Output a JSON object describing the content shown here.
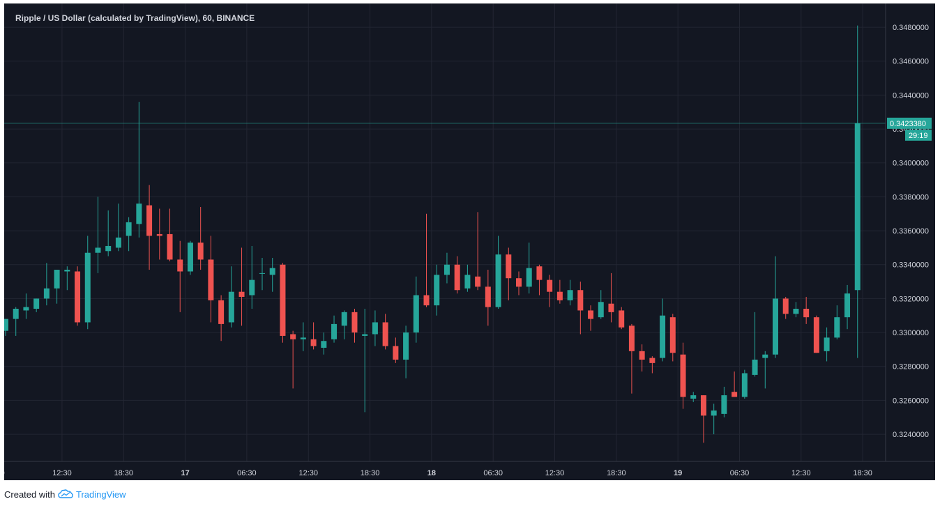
{
  "chart_title": "Ripple / US Dollar (calculated by TradingView), 60, BINANCE",
  "footer": {
    "created_with": "Created with",
    "brand": "TradingView"
  },
  "colors": {
    "background": "#131722",
    "up": "#26a69a",
    "down": "#ef5350",
    "grid": "#232633",
    "text": "#d1d4dc"
  },
  "chart_data": {
    "type": "candlestick",
    "title": "Ripple / US Dollar (calculated by TradingView), 60, BINANCE",
    "ylim": [
      0.3224,
      0.3494
    ],
    "y_ticks": [
      "0.3480000",
      "0.3460000",
      "0.3440000",
      "0.3420000",
      "0.3400000",
      "0.3380000",
      "0.3360000",
      "0.3340000",
      "0.3320000",
      "0.3300000",
      "0.3280000",
      "0.3260000",
      "0.3240000"
    ],
    "x_ticks": [
      {
        "label": "30",
        "index": -0.5,
        "bold": false
      },
      {
        "label": "12:30",
        "index": 5.5,
        "bold": false
      },
      {
        "label": "18:30",
        "index": 11.5,
        "bold": false
      },
      {
        "label": "17",
        "index": 17.5,
        "bold": true
      },
      {
        "label": "06:30",
        "index": 23.5,
        "bold": false
      },
      {
        "label": "12:30",
        "index": 29.5,
        "bold": false
      },
      {
        "label": "18:30",
        "index": 35.5,
        "bold": false
      },
      {
        "label": "18",
        "index": 41.5,
        "bold": true
      },
      {
        "label": "06:30",
        "index": 47.5,
        "bold": false
      },
      {
        "label": "12:30",
        "index": 53.5,
        "bold": false
      },
      {
        "label": "18:30",
        "index": 59.5,
        "bold": false
      },
      {
        "label": "19",
        "index": 65.5,
        "bold": true
      },
      {
        "label": "06:30",
        "index": 71.5,
        "bold": false
      },
      {
        "label": "12:30",
        "index": 77.5,
        "bold": false
      },
      {
        "label": "18:30",
        "index": 83.5,
        "bold": false
      }
    ],
    "last_price": "0.3423380",
    "countdown": "29:19",
    "last_price_value": 0.342338,
    "candles": [
      {
        "o": 0.3301,
        "h": 0.3307,
        "l": 0.3298,
        "c": 0.3308
      },
      {
        "o": 0.3308,
        "h": 0.3315,
        "l": 0.3298,
        "c": 0.3314
      },
      {
        "o": 0.3313,
        "h": 0.3323,
        "l": 0.3308,
        "c": 0.3315
      },
      {
        "o": 0.3314,
        "h": 0.332,
        "l": 0.3312,
        "c": 0.332
      },
      {
        "o": 0.332,
        "h": 0.3341,
        "l": 0.3316,
        "c": 0.3326
      },
      {
        "o": 0.3326,
        "h": 0.3335,
        "l": 0.3317,
        "c": 0.3337
      },
      {
        "o": 0.3336,
        "h": 0.3339,
        "l": 0.3325,
        "c": 0.3337
      },
      {
        "o": 0.3336,
        "h": 0.3339,
        "l": 0.3304,
        "c": 0.3306
      },
      {
        "o": 0.3306,
        "h": 0.3357,
        "l": 0.3302,
        "c": 0.3347
      },
      {
        "o": 0.3347,
        "h": 0.338,
        "l": 0.3335,
        "c": 0.335
      },
      {
        "o": 0.3348,
        "h": 0.3372,
        "l": 0.3345,
        "c": 0.3351
      },
      {
        "o": 0.335,
        "h": 0.3376,
        "l": 0.3348,
        "c": 0.3356
      },
      {
        "o": 0.3357,
        "h": 0.3368,
        "l": 0.3348,
        "c": 0.3365
      },
      {
        "o": 0.3364,
        "h": 0.3436,
        "l": 0.3356,
        "c": 0.3376
      },
      {
        "o": 0.3375,
        "h": 0.3387,
        "l": 0.3337,
        "c": 0.3357
      },
      {
        "o": 0.3358,
        "h": 0.3373,
        "l": 0.3343,
        "c": 0.3357
      },
      {
        "o": 0.3358,
        "h": 0.3373,
        "l": 0.3342,
        "c": 0.3343
      },
      {
        "o": 0.3343,
        "h": 0.3354,
        "l": 0.3312,
        "c": 0.3336
      },
      {
        "o": 0.3336,
        "h": 0.3354,
        "l": 0.3334,
        "c": 0.3353
      },
      {
        "o": 0.3353,
        "h": 0.3374,
        "l": 0.3337,
        "c": 0.3343
      },
      {
        "o": 0.3343,
        "h": 0.3357,
        "l": 0.3306,
        "c": 0.3319
      },
      {
        "o": 0.3319,
        "h": 0.3322,
        "l": 0.3295,
        "c": 0.3305
      },
      {
        "o": 0.3306,
        "h": 0.3339,
        "l": 0.3303,
        "c": 0.3324
      },
      {
        "o": 0.3324,
        "h": 0.335,
        "l": 0.3304,
        "c": 0.3321
      },
      {
        "o": 0.3322,
        "h": 0.3351,
        "l": 0.3314,
        "c": 0.3331
      },
      {
        "o": 0.3335,
        "h": 0.3344,
        "l": 0.3325,
        "c": 0.3335
      },
      {
        "o": 0.3334,
        "h": 0.3344,
        "l": 0.3324,
        "c": 0.3338
      },
      {
        "o": 0.334,
        "h": 0.3341,
        "l": 0.3294,
        "c": 0.3298
      },
      {
        "o": 0.3299,
        "h": 0.3301,
        "l": 0.3267,
        "c": 0.3296
      },
      {
        "o": 0.3296,
        "h": 0.3306,
        "l": 0.3289,
        "c": 0.3297
      },
      {
        "o": 0.3296,
        "h": 0.3306,
        "l": 0.329,
        "c": 0.3292
      },
      {
        "o": 0.3291,
        "h": 0.33,
        "l": 0.3287,
        "c": 0.3295
      },
      {
        "o": 0.3296,
        "h": 0.331,
        "l": 0.3294,
        "c": 0.3305
      },
      {
        "o": 0.3304,
        "h": 0.3313,
        "l": 0.3296,
        "c": 0.3312
      },
      {
        "o": 0.3312,
        "h": 0.3314,
        "l": 0.3294,
        "c": 0.33
      },
      {
        "o": 0.3298,
        "h": 0.3314,
        "l": 0.3253,
        "c": 0.3299
      },
      {
        "o": 0.3299,
        "h": 0.3313,
        "l": 0.3292,
        "c": 0.3306
      },
      {
        "o": 0.3306,
        "h": 0.3311,
        "l": 0.329,
        "c": 0.3292
      },
      {
        "o": 0.3292,
        "h": 0.3297,
        "l": 0.3282,
        "c": 0.3284
      },
      {
        "o": 0.3284,
        "h": 0.3304,
        "l": 0.3273,
        "c": 0.33
      },
      {
        "o": 0.33,
        "h": 0.3333,
        "l": 0.3294,
        "c": 0.3322
      },
      {
        "o": 0.3322,
        "h": 0.337,
        "l": 0.3315,
        "c": 0.3316
      },
      {
        "o": 0.3316,
        "h": 0.334,
        "l": 0.331,
        "c": 0.3334
      },
      {
        "o": 0.3334,
        "h": 0.3347,
        "l": 0.3329,
        "c": 0.334
      },
      {
        "o": 0.334,
        "h": 0.3345,
        "l": 0.3323,
        "c": 0.3325
      },
      {
        "o": 0.3326,
        "h": 0.334,
        "l": 0.3324,
        "c": 0.3334
      },
      {
        "o": 0.3333,
        "h": 0.3371,
        "l": 0.3325,
        "c": 0.3327
      },
      {
        "o": 0.3327,
        "h": 0.3337,
        "l": 0.3304,
        "c": 0.3315
      },
      {
        "o": 0.3315,
        "h": 0.3357,
        "l": 0.3314,
        "c": 0.3346
      },
      {
        "o": 0.3346,
        "h": 0.335,
        "l": 0.3319,
        "c": 0.3332
      },
      {
        "o": 0.3332,
        "h": 0.3336,
        "l": 0.3322,
        "c": 0.3327
      },
      {
        "o": 0.3327,
        "h": 0.3353,
        "l": 0.3323,
        "c": 0.3338
      },
      {
        "o": 0.3339,
        "h": 0.334,
        "l": 0.3322,
        "c": 0.3331
      },
      {
        "o": 0.3331,
        "h": 0.3334,
        "l": 0.3315,
        "c": 0.3324
      },
      {
        "o": 0.3324,
        "h": 0.3331,
        "l": 0.3317,
        "c": 0.3319
      },
      {
        "o": 0.3319,
        "h": 0.3331,
        "l": 0.3316,
        "c": 0.3325
      },
      {
        "o": 0.3325,
        "h": 0.333,
        "l": 0.3299,
        "c": 0.3313
      },
      {
        "o": 0.3313,
        "h": 0.3316,
        "l": 0.3301,
        "c": 0.3308
      },
      {
        "o": 0.3309,
        "h": 0.3325,
        "l": 0.3308,
        "c": 0.3318
      },
      {
        "o": 0.3317,
        "h": 0.3335,
        "l": 0.3306,
        "c": 0.3312
      },
      {
        "o": 0.3313,
        "h": 0.3315,
        "l": 0.3302,
        "c": 0.3303
      },
      {
        "o": 0.3304,
        "h": 0.3305,
        "l": 0.3264,
        "c": 0.3289
      },
      {
        "o": 0.3289,
        "h": 0.3293,
        "l": 0.3277,
        "c": 0.3284
      },
      {
        "o": 0.3285,
        "h": 0.3286,
        "l": 0.3276,
        "c": 0.3282
      },
      {
        "o": 0.3285,
        "h": 0.332,
        "l": 0.3283,
        "c": 0.331
      },
      {
        "o": 0.3309,
        "h": 0.3311,
        "l": 0.3283,
        "c": 0.3288
      },
      {
        "o": 0.3287,
        "h": 0.3294,
        "l": 0.3255,
        "c": 0.3262
      },
      {
        "o": 0.3261,
        "h": 0.3265,
        "l": 0.3259,
        "c": 0.3263
      },
      {
        "o": 0.3263,
        "h": 0.3263,
        "l": 0.3235,
        "c": 0.3251
      },
      {
        "o": 0.3251,
        "h": 0.3258,
        "l": 0.324,
        "c": 0.3254
      },
      {
        "o": 0.3252,
        "h": 0.3268,
        "l": 0.325,
        "c": 0.3263
      },
      {
        "o": 0.3265,
        "h": 0.3277,
        "l": 0.3262,
        "c": 0.3262
      },
      {
        "o": 0.3262,
        "h": 0.3278,
        "l": 0.3261,
        "c": 0.3276
      },
      {
        "o": 0.3275,
        "h": 0.3312,
        "l": 0.3274,
        "c": 0.3284
      },
      {
        "o": 0.3285,
        "h": 0.3289,
        "l": 0.3267,
        "c": 0.3287
      },
      {
        "o": 0.3287,
        "h": 0.3345,
        "l": 0.3285,
        "c": 0.332
      },
      {
        "o": 0.332,
        "h": 0.3321,
        "l": 0.3308,
        "c": 0.3311
      },
      {
        "o": 0.3311,
        "h": 0.3318,
        "l": 0.3309,
        "c": 0.3314
      },
      {
        "o": 0.3314,
        "h": 0.3321,
        "l": 0.3305,
        "c": 0.3309
      },
      {
        "o": 0.3309,
        "h": 0.331,
        "l": 0.3288,
        "c": 0.3288
      },
      {
        "o": 0.3289,
        "h": 0.3303,
        "l": 0.3283,
        "c": 0.3297
      },
      {
        "o": 0.3297,
        "h": 0.3316,
        "l": 0.3296,
        "c": 0.3309
      },
      {
        "o": 0.3309,
        "h": 0.3328,
        "l": 0.3302,
        "c": 0.3323
      },
      {
        "o": 0.3325,
        "h": 0.3481,
        "l": 0.3285,
        "c": 0.342338
      }
    ]
  }
}
